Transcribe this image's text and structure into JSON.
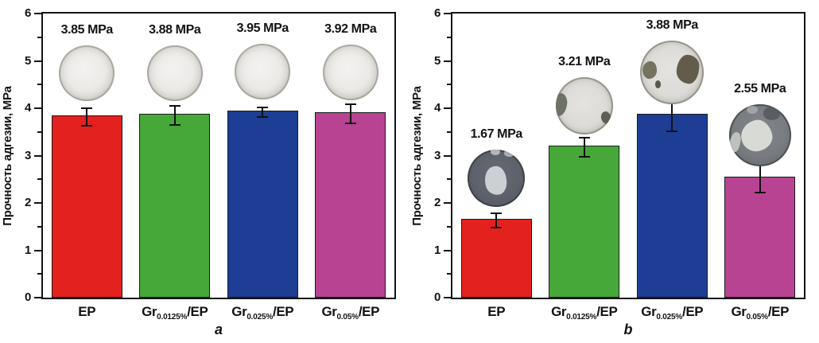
{
  "figure": {
    "description": "Adhesion strength bar charts with sample disk photos",
    "panel_letters": [
      "a",
      "b"
    ]
  },
  "chart_data": [
    {
      "type": "bar",
      "panel_label": "a",
      "title": "",
      "xlabel": "",
      "ylabel": "Прочность адгезии, MPa",
      "ylim": [
        0,
        6
      ],
      "yticks": [
        0,
        1,
        2,
        3,
        4,
        5,
        6
      ],
      "minor_tick_interval": 0.5,
      "grid": false,
      "legend": null,
      "categories": [
        "EP",
        "Gr0.0125%/EP",
        "Gr0.025%/EP",
        "Gr0.05%/EP"
      ],
      "category_parts": [
        {
          "pre": "EP",
          "sub": "",
          "post": ""
        },
        {
          "pre": "Gr",
          "sub": "0.0125%",
          "post": "/EP"
        },
        {
          "pre": "Gr",
          "sub": "0.025%",
          "post": "/EP"
        },
        {
          "pre": "Gr",
          "sub": "0.05%",
          "post": "/EP"
        }
      ],
      "values": [
        3.85,
        3.88,
        3.95,
        3.92
      ],
      "errors": [
        0.18,
        0.2,
        0.1,
        0.2
      ],
      "value_labels": [
        "3.85 MPa",
        "3.88 MPa",
        "3.95 MPa",
        "3.92 MPa"
      ],
      "bar_colors": [
        "#e3211f",
        "#46a838",
        "#1d3e94",
        "#b84393"
      ],
      "sample_photos": [
        {
          "variant": "clear",
          "center_value": 4.78,
          "size": 70
        },
        {
          "variant": "clear",
          "center_value": 4.78,
          "size": 70
        },
        {
          "variant": "clear",
          "center_value": 4.8,
          "size": 70
        },
        {
          "variant": "clear",
          "center_value": 4.79,
          "size": 70
        }
      ]
    },
    {
      "type": "bar",
      "panel_label": "b",
      "title": "",
      "xlabel": "",
      "ylabel": "Прочность адгезии, MPa",
      "ylim": [
        0,
        6
      ],
      "yticks": [
        0,
        1,
        2,
        3,
        4,
        5,
        6
      ],
      "minor_tick_interval": 0.5,
      "grid": false,
      "legend": null,
      "categories": [
        "EP",
        "Gr0.0125%/EP",
        "Gr0.025%/EP",
        "Gr0.05%/EP"
      ],
      "category_parts": [
        {
          "pre": "EP",
          "sub": "",
          "post": ""
        },
        {
          "pre": "Gr",
          "sub": "0.0125%",
          "post": "/EP"
        },
        {
          "pre": "Gr",
          "sub": "0.025%",
          "post": "/EP"
        },
        {
          "pre": "Gr",
          "sub": "0.05%",
          "post": "/EP"
        }
      ],
      "values": [
        1.67,
        3.21,
        3.88,
        2.55
      ],
      "errors": [
        0.15,
        0.2,
        0.34,
        0.3
      ],
      "value_labels": [
        "1.67 MPa",
        "3.21 MPa",
        "3.88 MPa",
        "2.55 MPa"
      ],
      "bar_colors": [
        "#e3211f",
        "#46a838",
        "#1d3e94",
        "#b84393"
      ],
      "sample_photos": [
        {
          "variant": "dark-light-blob",
          "center_value": 2.56,
          "size": 72
        },
        {
          "variant": "light-left-patch",
          "center_value": 4.09,
          "size": 72
        },
        {
          "variant": "light-two-patches",
          "center_value": 4.79,
          "size": 80
        },
        {
          "variant": "dark-light-center",
          "center_value": 3.46,
          "size": 78
        }
      ]
    }
  ]
}
